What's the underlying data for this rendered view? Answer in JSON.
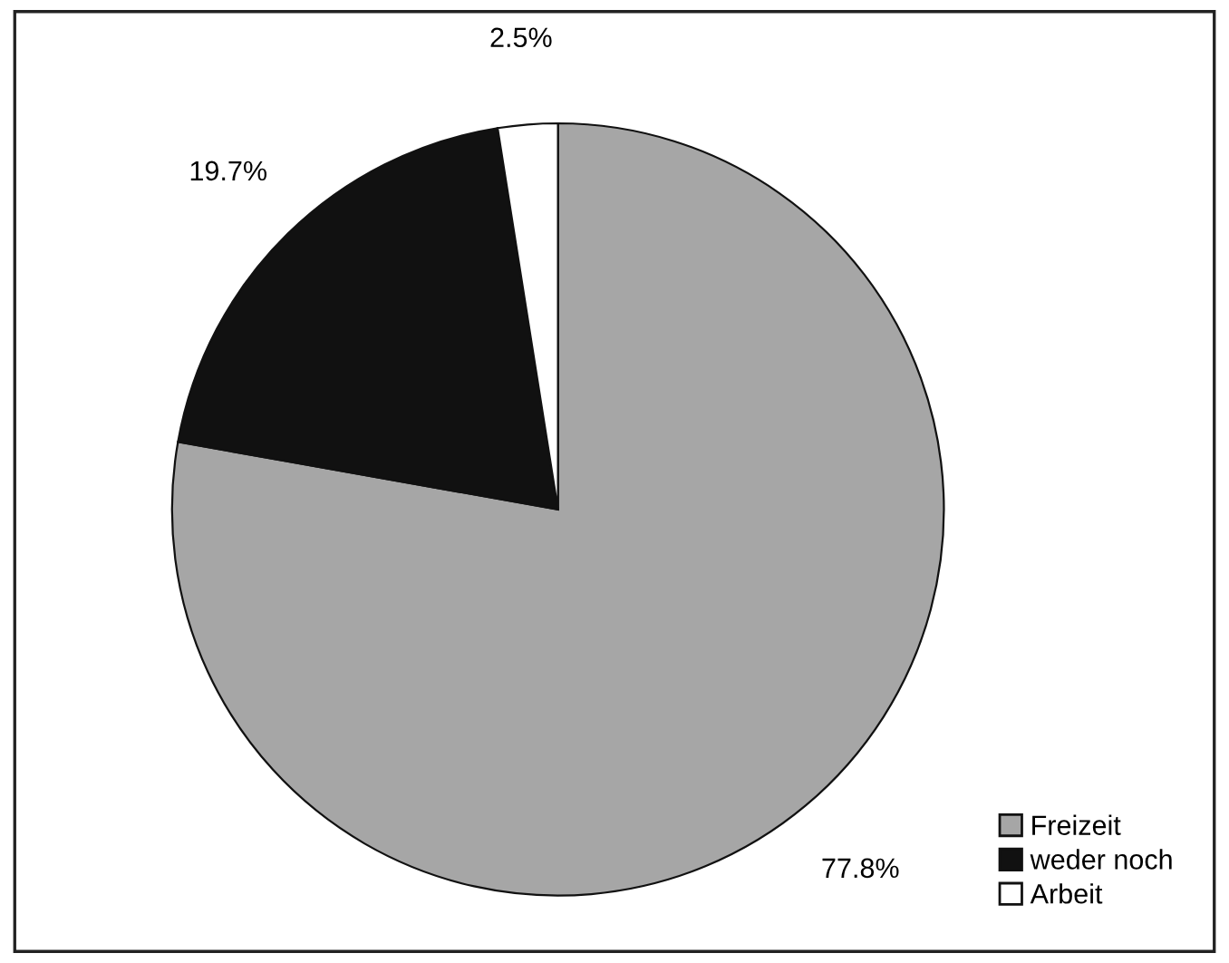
{
  "chart_data": {
    "type": "pie",
    "categories": [
      "Freizeit",
      "weder noch",
      "Arbeit"
    ],
    "values": [
      77.8,
      19.7,
      2.5
    ],
    "colors": [
      "#a6a6a6",
      "#111111",
      "#ffffff"
    ],
    "value_labels": [
      "77.8%",
      "19.7%",
      "2.5%"
    ],
    "legend": "bottom right"
  }
}
